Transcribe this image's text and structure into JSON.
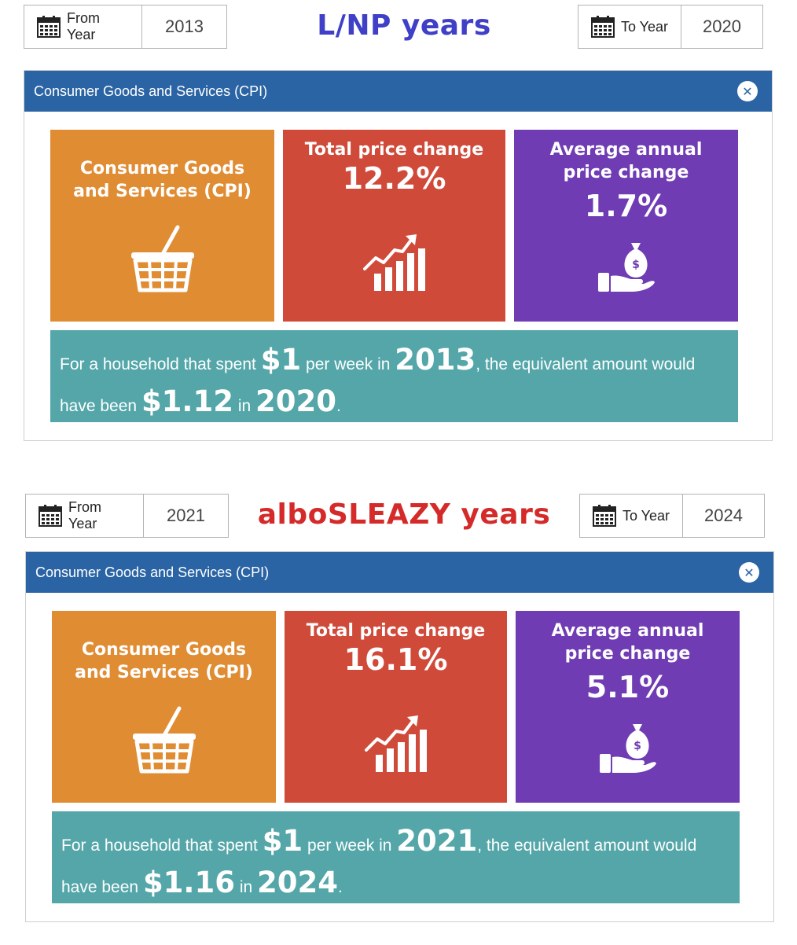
{
  "colors": {
    "header_blue": "#2a64a4",
    "orange_tile": "#e08c33",
    "red_tile": "#d04a3a",
    "purple_tile": "#6f3cb4",
    "teal_summary": "#54a6a9",
    "title_lnp": "#3f3fc8",
    "title_albo": "#d42a2a"
  },
  "sections": [
    {
      "title": "L/NP years",
      "from_label": "From Year",
      "from_value": "2013",
      "to_label": "To Year",
      "to_value": "2020",
      "panel_title": "Consumer Goods and Services (CPI)",
      "category_tile": "Consumer Goods and Services (CPI)",
      "total_label": "Total price change",
      "total_value": "12.2%",
      "avg_label_1": "Average annual",
      "avg_label_2": "price change",
      "avg_value": "1.7%",
      "s_text1": "For a household that spent",
      "s_amount": "$1",
      "s_text2": "per week in",
      "s_year1": "2013",
      "s_text3": ", the equivalent amount would have been",
      "s_result": "$1.12",
      "s_text4": "in",
      "s_year2": "2020",
      "s_text5": "."
    },
    {
      "title": "alboSLEAZY years",
      "from_label": "From Year",
      "from_value": "2021",
      "to_label": "To Year",
      "to_value": "2024",
      "panel_title": "Consumer Goods and Services (CPI)",
      "category_tile": "Consumer Goods and Services (CPI)",
      "total_label": "Total price change",
      "total_value": "16.1%",
      "avg_label_1": "Average annual",
      "avg_label_2": "price change",
      "avg_value": "5.1%",
      "s_text1": "For a household that spent",
      "s_amount": "$1",
      "s_text2": "per week in",
      "s_year1": "2021",
      "s_text3": ", the equivalent amount would have been",
      "s_result": "$1.16",
      "s_text4": "in",
      "s_year2": "2024",
      "s_text5": "."
    }
  ],
  "icons": {
    "calendar": "calendar-icon",
    "close": "close-icon",
    "basket": "shopping-basket-icon",
    "growth": "growth-chart-icon",
    "money": "money-bag-hand-icon"
  }
}
